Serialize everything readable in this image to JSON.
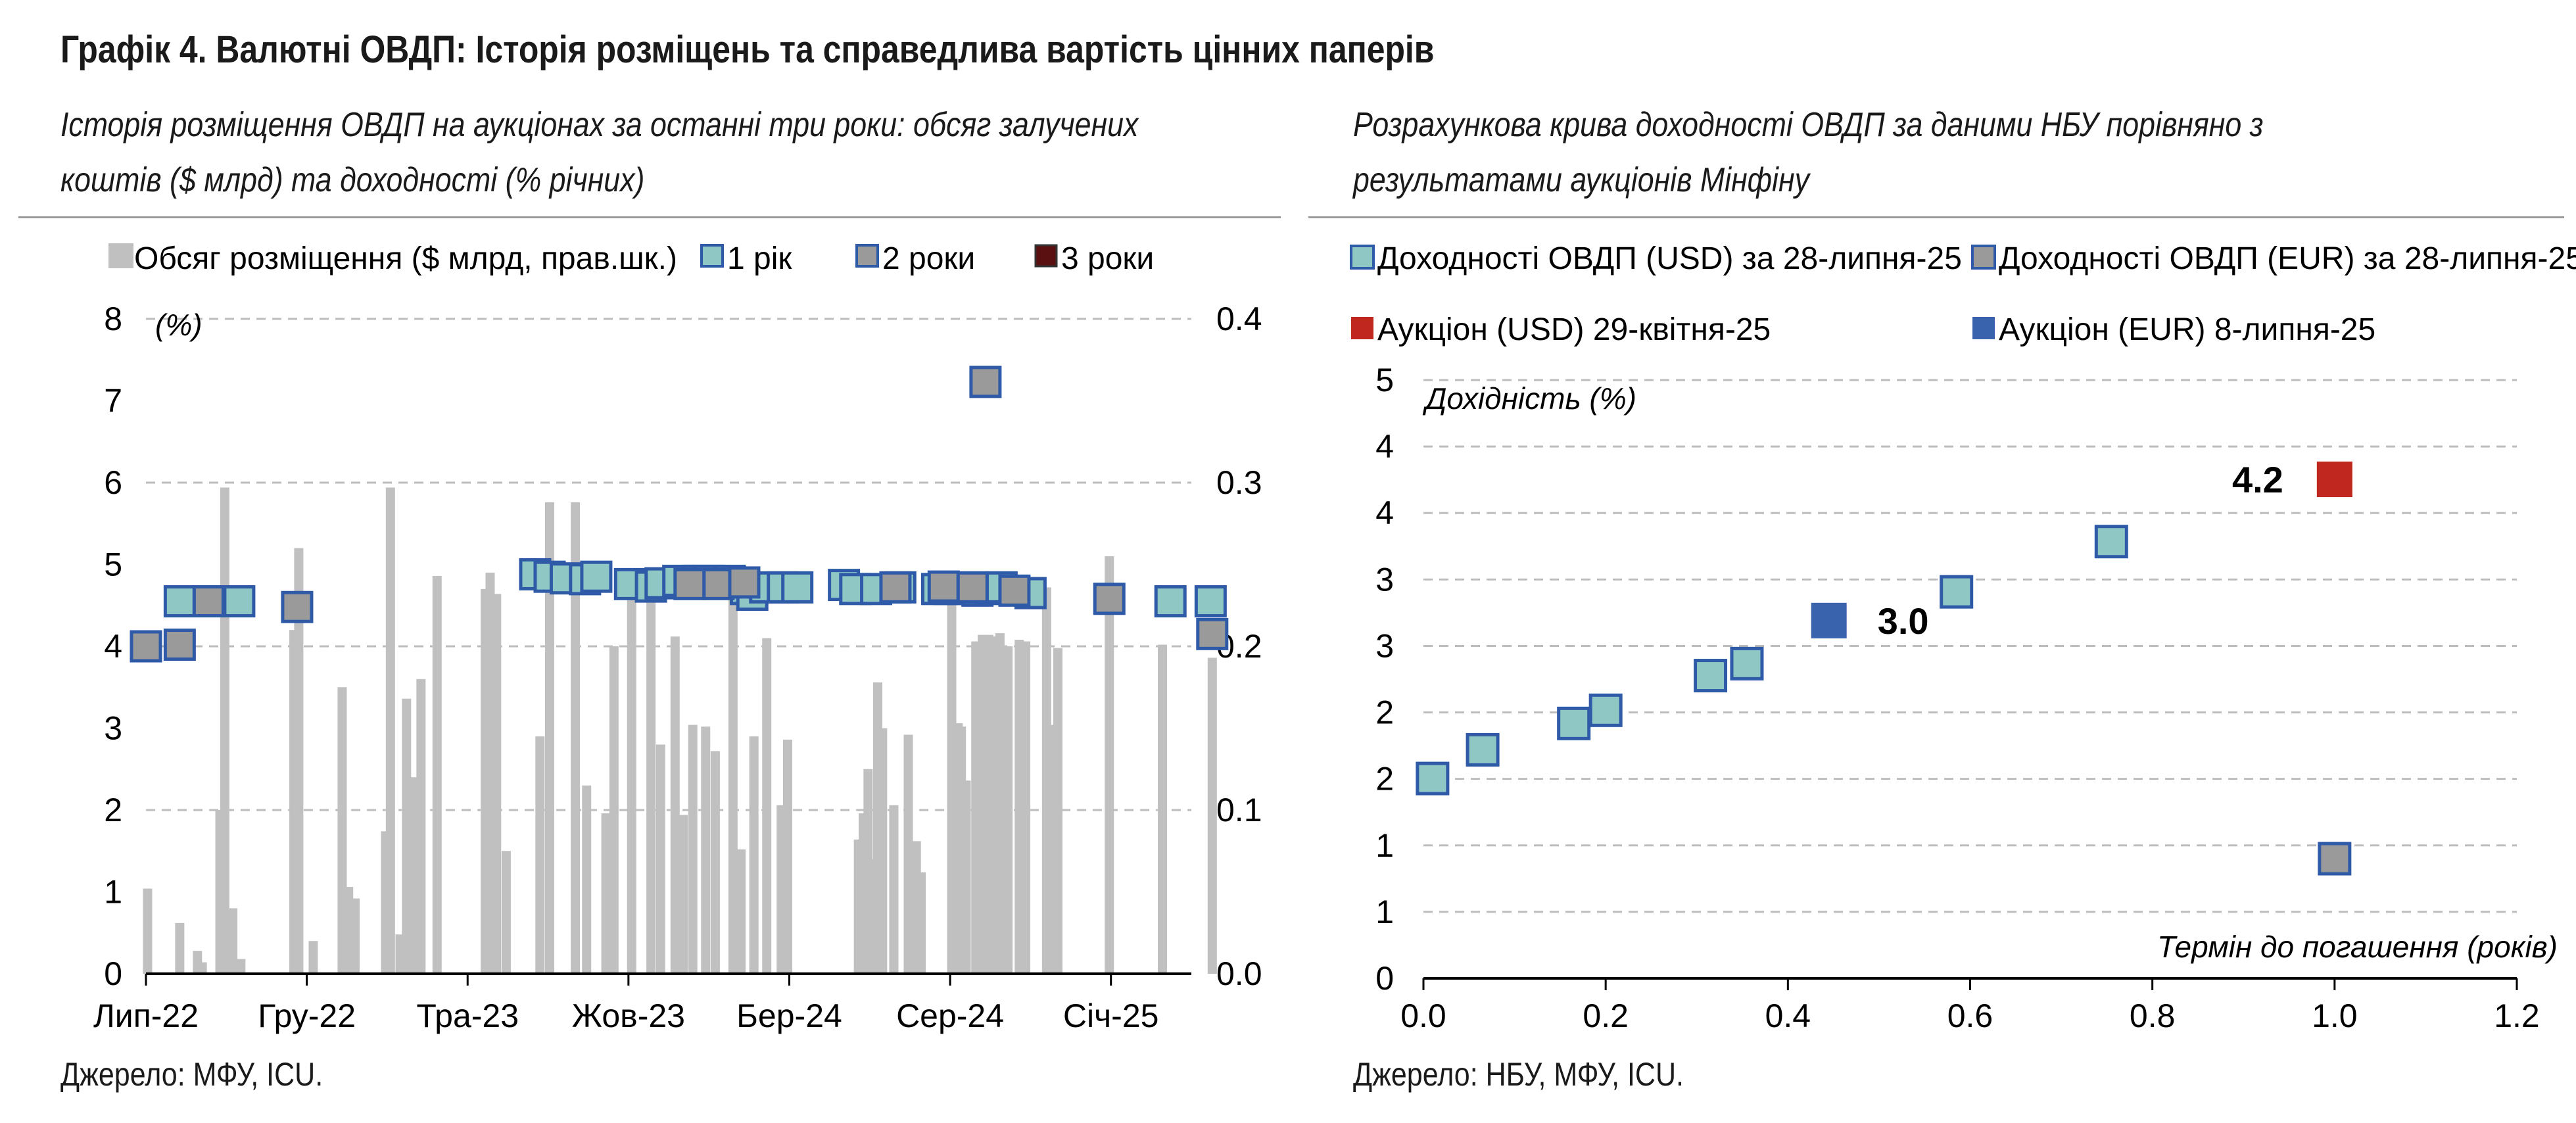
{
  "title": "Графік 4. Валютні ОВДП: Історія розміщень та справедлива вартість цінних паперів",
  "left_panel": {
    "subtitle_line1": "Історія розміщення ОВДП на аукціонах за останні три роки: обсяг залучених",
    "subtitle_line2": "коштів ($ млрд) та доходності (% річних)",
    "source": "Джерело: МФУ, ICU."
  },
  "right_panel": {
    "subtitle_line1": "Розрахункова крива доходності ОВДП за даними НБУ порівняно з",
    "subtitle_line2": "результатами аукціонів Мінфіну",
    "source": "Джерело: НБУ, МФУ, ICU."
  },
  "colors": {
    "bar": "#c0c0c0",
    "teal": "#8fc7c4",
    "gray_marker": "#9a9a9a",
    "dark_red": "#5a1010",
    "red": "#c0281f",
    "blue": "#3a63ad",
    "border_blue": "#2f5aa8",
    "grid": "#bdbdbd"
  },
  "chart_data": [
    {
      "type": "bar+scatter",
      "legend": [
        "Обсяг розміщення ($ млрд, прав.шк.)",
        "1 рік",
        "2 роки",
        "3 роки"
      ],
      "left_axis_label": "(%)",
      "left_ylim": [
        0,
        8
      ],
      "left_ticks": [
        "0",
        "1",
        "2",
        "3",
        "4",
        "5",
        "6",
        "7",
        "8"
      ],
      "right_ylim": [
        0,
        0.4
      ],
      "right_ticks": [
        "0.0",
        "0.1",
        "0.2",
        "0.3",
        "0.4"
      ],
      "x_ticks": [
        "Лип-22",
        "Гру-22",
        "Тра-23",
        "Жов-23",
        "Бер-24",
        "Сер-24",
        "Січ-25"
      ],
      "x_tick_pos": [
        0,
        5,
        10,
        15,
        20,
        25,
        30
      ],
      "x_range": [
        0,
        32.5
      ],
      "bars_x": [
        0.05,
        1.05,
        1.6,
        1.75,
        2.3,
        2.45,
        2.6,
        2.7,
        2.95,
        4.6,
        4.75,
        5.2,
        6.1,
        6.3,
        6.5,
        7.45,
        7.6,
        7.9,
        8.1,
        8.3,
        8.55,
        9.05,
        10.55,
        10.7,
        10.9,
        11.2,
        12.25,
        12.55,
        13.35,
        13.7,
        14.3,
        14.55,
        15.1,
        15.7,
        16.0,
        16.45,
        16.7,
        17.0,
        17.4,
        17.7,
        18.25,
        18.5,
        18.9,
        19.3,
        19.75,
        19.95,
        22.15,
        22.3,
        22.45,
        22.6,
        22.75,
        22.9,
        23.25,
        23.7,
        23.95,
        24.1,
        25.05,
        25.25,
        25.35,
        25.5,
        25.8,
        26.0,
        26.2,
        26.35,
        26.55,
        26.8,
        27.15,
        27.35,
        28.0,
        28.15,
        28.35,
        29.95,
        31.6,
        33.15
      ],
      "bars_values": [
        0.052,
        0.031,
        0.014,
        0.007,
        0.1,
        0.297,
        0.017,
        0.04,
        0.009,
        0.21,
        0.26,
        0.02,
        0.175,
        0.053,
        0.046,
        0.087,
        0.297,
        0.024,
        0.168,
        0.12,
        0.18,
        0.243,
        0.235,
        0.245,
        0.232,
        0.075,
        0.145,
        0.288,
        0.288,
        0.115,
        0.098,
        0.2,
        0.235,
        0.23,
        0.14,
        0.206,
        0.097,
        0.152,
        0.151,
        0.136,
        0.235,
        0.076,
        0.145,
        0.205,
        0.103,
        0.143,
        0.082,
        0.098,
        0.125,
        0.07,
        0.178,
        0.15,
        0.103,
        0.146,
        0.081,
        0.062,
        0.236,
        0.153,
        0.151,
        0.118,
        0.203,
        0.207,
        0.207,
        0.206,
        0.208,
        0.2,
        0.204,
        0.203,
        0.236,
        0.152,
        0.199,
        0.255,
        0.201,
        0.193
      ],
      "series": [
        {
          "name": "1 рік",
          "x": [
            1.05,
            2.9,
            12.1,
            12.55,
            13.05,
            13.65,
            14.0,
            15.05,
            15.7,
            16.0,
            16.55,
            17.15,
            17.5,
            18.15,
            18.65,
            18.85,
            19.25,
            19.8,
            20.25,
            21.7,
            22.05,
            22.7,
            23.45,
            24.6,
            25.0,
            25.4,
            25.85,
            26.25,
            26.6,
            27.5,
            31.85,
            33.1
          ],
          "values": [
            4.55,
            4.55,
            4.88,
            4.85,
            4.83,
            4.82,
            4.85,
            4.76,
            4.73,
            4.77,
            4.8,
            4.8,
            4.8,
            4.8,
            4.7,
            4.63,
            4.72,
            4.72,
            4.72,
            4.75,
            4.7,
            4.7,
            4.72,
            4.7,
            4.7,
            4.7,
            4.68,
            4.7,
            4.72,
            4.65,
            4.55,
            4.55
          ]
        },
        {
          "name": "2 роки",
          "x": [
            0.0,
            1.05,
            1.95,
            4.7,
            16.9,
            17.8,
            18.6,
            23.3,
            24.8,
            25.7,
            27.0,
            29.95,
            33.15
          ],
          "values": [
            4.0,
            4.02,
            4.55,
            4.48,
            4.76,
            4.76,
            4.78,
            4.72,
            4.73,
            4.72,
            4.68,
            4.58,
            4.15
          ]
        },
        {
          "name": "3 роки",
          "x": [
            26.1
          ],
          "values": [
            7.23
          ]
        }
      ]
    },
    {
      "type": "scatter",
      "legend": [
        "Доходності ОВДП (USD) за 28-липня-25",
        "Доходності ОВДП (EUR) за 28-липня-25",
        "Аукціон (USD) 29-квітня-25",
        "Аукціон (EUR) 8-липня-25"
      ],
      "ylabel": "Дохідність (%)",
      "xlabel": "Термін до погашення (років)",
      "xlim": [
        0,
        1.2
      ],
      "ylim": [
        0,
        5
      ],
      "x_ticks": [
        "0.0",
        "0.2",
        "0.4",
        "0.6",
        "0.8",
        "1.0",
        "1.2"
      ],
      "y_ticks": [
        "0",
        "1",
        "1",
        "2",
        "2",
        "3",
        "3",
        "4",
        "4",
        "5"
      ],
      "series": [
        {
          "name": "Доходності ОВДП (USD) за 28-липня-25",
          "x": [
            0.01,
            0.065,
            0.165,
            0.2,
            0.315,
            0.355,
            0.585,
            0.755
          ],
          "y": [
            1.67,
            1.91,
            2.13,
            2.24,
            2.53,
            2.63,
            3.23,
            3.65
          ]
        },
        {
          "name": "Доходності ОВДП (EUR) за 28-липня-25",
          "x": [
            1.0
          ],
          "y": [
            1.0
          ]
        },
        {
          "name": "Аукціон (USD) 29-квітня-25",
          "x": [
            1.0
          ],
          "y": [
            4.17
          ],
          "label": "4.2"
        },
        {
          "name": "Аукціон (EUR) 8-липня-25",
          "x": [
            0.445
          ],
          "y": [
            2.99
          ],
          "label": "3.0"
        }
      ]
    }
  ]
}
